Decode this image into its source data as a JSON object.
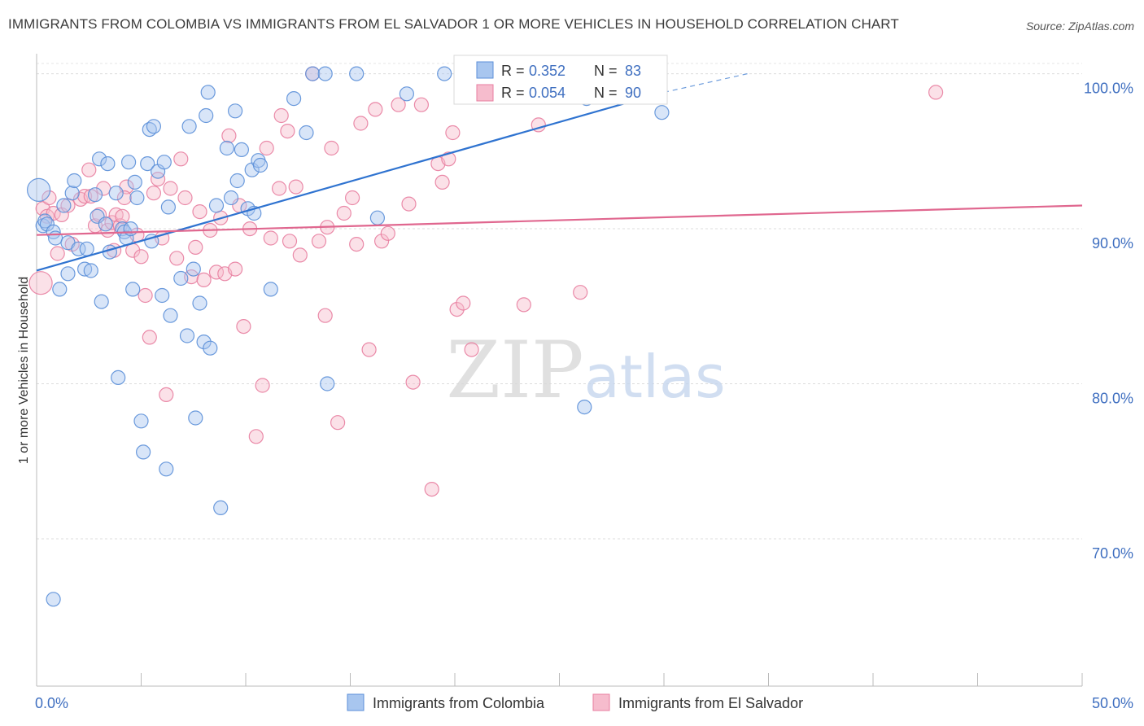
{
  "chart_data": {
    "type": "scatter",
    "title": "IMMIGRANTS FROM COLOMBIA VS IMMIGRANTS FROM EL SALVADOR 1 OR MORE VEHICLES IN HOUSEHOLD CORRELATION CHART",
    "source": "Source: ZipAtlas.com",
    "xlabel": "",
    "ylabel": "1 or more Vehicles in Household",
    "xlim": [
      0,
      50
    ],
    "ylim": [
      60.5,
      101.5
    ],
    "x_tick_labels": [
      "0.0%",
      "50.0%"
    ],
    "y_ticks": [
      70,
      80,
      90,
      100
    ],
    "y_tick_labels": [
      "70.0%",
      "80.0%",
      "90.0%",
      "100.0%"
    ],
    "grid": true,
    "legend_position": "bottom-center",
    "watermark": "ZIPatlas",
    "series": [
      {
        "name": "Immigrants from Colombia",
        "color": "#5b8fd8",
        "fill": "#a8c6ef",
        "R": "0.352",
        "N": "83",
        "trend": {
          "x0": 0,
          "y0": 87.3,
          "x1": 30,
          "y1": 98.8,
          "dash_to_x": 34,
          "dash_to_y": 100.0
        },
        "points": [
          [
            0.1,
            92.5
          ],
          [
            0.3,
            90.2
          ],
          [
            0.4,
            90.5
          ],
          [
            0.5,
            90.3
          ],
          [
            0.8,
            89.8
          ],
          [
            0.9,
            89.4
          ],
          [
            1.1,
            86.1
          ],
          [
            1.3,
            91.5
          ],
          [
            1.5,
            87.1
          ],
          [
            1.5,
            89.1
          ],
          [
            1.7,
            92.3
          ],
          [
            1.8,
            93.1
          ],
          [
            2.0,
            88.7
          ],
          [
            2.3,
            87.4
          ],
          [
            2.4,
            88.7
          ],
          [
            2.6,
            87.3
          ],
          [
            2.8,
            92.2
          ],
          [
            2.9,
            90.8
          ],
          [
            3.0,
            94.5
          ],
          [
            3.1,
            85.3
          ],
          [
            3.3,
            90.3
          ],
          [
            3.4,
            94.2
          ],
          [
            3.5,
            88.5
          ],
          [
            3.8,
            92.3
          ],
          [
            3.9,
            80.4
          ],
          [
            4.1,
            90.0
          ],
          [
            4.2,
            89.8
          ],
          [
            4.3,
            89.4
          ],
          [
            4.4,
            94.3
          ],
          [
            4.5,
            90.0
          ],
          [
            4.6,
            86.1
          ],
          [
            4.7,
            93.0
          ],
          [
            4.8,
            92.0
          ],
          [
            5.0,
            77.6
          ],
          [
            5.1,
            75.6
          ],
          [
            5.3,
            94.2
          ],
          [
            5.4,
            96.4
          ],
          [
            5.5,
            89.2
          ],
          [
            5.6,
            96.6
          ],
          [
            5.8,
            93.7
          ],
          [
            6.0,
            85.7
          ],
          [
            6.1,
            94.3
          ],
          [
            6.2,
            74.5
          ],
          [
            6.3,
            91.4
          ],
          [
            6.4,
            84.4
          ],
          [
            6.9,
            86.8
          ],
          [
            7.2,
            83.1
          ],
          [
            7.3,
            96.6
          ],
          [
            7.5,
            87.4
          ],
          [
            7.6,
            77.8
          ],
          [
            7.8,
            85.2
          ],
          [
            8.0,
            82.7
          ],
          [
            8.1,
            97.3
          ],
          [
            8.2,
            98.8
          ],
          [
            8.3,
            82.3
          ],
          [
            8.6,
            91.5
          ],
          [
            8.8,
            72.0
          ],
          [
            9.1,
            95.2
          ],
          [
            9.3,
            92.0
          ],
          [
            9.5,
            97.6
          ],
          [
            9.6,
            93.1
          ],
          [
            9.8,
            95.1
          ],
          [
            10.1,
            91.3
          ],
          [
            10.3,
            93.8
          ],
          [
            10.4,
            91.0
          ],
          [
            10.6,
            94.4
          ],
          [
            10.7,
            94.1
          ],
          [
            11.2,
            86.1
          ],
          [
            12.3,
            98.4
          ],
          [
            12.9,
            96.2
          ],
          [
            13.2,
            100.0
          ],
          [
            13.8,
            100.0
          ],
          [
            13.9,
            80.0
          ],
          [
            15.3,
            100.0
          ],
          [
            16.3,
            90.7
          ],
          [
            17.7,
            98.7
          ],
          [
            19.5,
            100.0
          ],
          [
            20.6,
            100.0
          ],
          [
            26.2,
            78.5
          ],
          [
            26.3,
            98.4
          ],
          [
            28.4,
            100.0
          ],
          [
            29.9,
            97.5
          ],
          [
            0.8,
            66.1
          ]
        ]
      },
      {
        "name": "Immigrants from El Salvador",
        "color": "#e87ea0",
        "fill": "#f6bccd",
        "R": "0.054",
        "N": "90",
        "trend": {
          "x0": 0,
          "y0": 89.6,
          "x1": 50,
          "y1": 91.5
        },
        "points": [
          [
            0.2,
            86.5
          ],
          [
            0.3,
            91.3
          ],
          [
            0.5,
            90.8
          ],
          [
            0.6,
            92.0
          ],
          [
            0.8,
            91.0
          ],
          [
            1.0,
            88.4
          ],
          [
            1.2,
            90.9
          ],
          [
            1.5,
            91.5
          ],
          [
            1.7,
            89.0
          ],
          [
            2.1,
            91.9
          ],
          [
            2.3,
            92.1
          ],
          [
            2.5,
            93.8
          ],
          [
            2.6,
            92.1
          ],
          [
            2.8,
            90.2
          ],
          [
            3.0,
            90.9
          ],
          [
            3.2,
            92.6
          ],
          [
            3.4,
            89.9
          ],
          [
            3.6,
            90.4
          ],
          [
            3.7,
            88.6
          ],
          [
            3.8,
            90.9
          ],
          [
            4.0,
            90.2
          ],
          [
            4.1,
            90.8
          ],
          [
            4.3,
            92.7
          ],
          [
            4.6,
            88.6
          ],
          [
            4.8,
            89.6
          ],
          [
            5.0,
            88.2
          ],
          [
            5.2,
            85.7
          ],
          [
            5.4,
            83.0
          ],
          [
            5.6,
            92.3
          ],
          [
            5.8,
            93.2
          ],
          [
            6.0,
            89.4
          ],
          [
            6.2,
            79.3
          ],
          [
            6.4,
            92.6
          ],
          [
            6.7,
            88.1
          ],
          [
            6.9,
            94.5
          ],
          [
            7.1,
            92.0
          ],
          [
            7.4,
            86.9
          ],
          [
            7.6,
            88.8
          ],
          [
            7.8,
            91.1
          ],
          [
            8.0,
            86.7
          ],
          [
            8.3,
            89.9
          ],
          [
            8.6,
            87.2
          ],
          [
            8.8,
            90.7
          ],
          [
            9.0,
            87.1
          ],
          [
            9.2,
            96.0
          ],
          [
            9.5,
            87.4
          ],
          [
            9.7,
            91.5
          ],
          [
            9.9,
            83.7
          ],
          [
            10.2,
            90.0
          ],
          [
            10.5,
            76.6
          ],
          [
            10.8,
            79.9
          ],
          [
            11.0,
            95.2
          ],
          [
            11.2,
            89.4
          ],
          [
            11.6,
            92.6
          ],
          [
            11.7,
            97.3
          ],
          [
            12.0,
            96.3
          ],
          [
            12.1,
            89.2
          ],
          [
            12.4,
            92.7
          ],
          [
            12.6,
            88.3
          ],
          [
            13.2,
            100.0
          ],
          [
            13.5,
            89.2
          ],
          [
            13.8,
            84.4
          ],
          [
            13.9,
            90.1
          ],
          [
            14.1,
            95.2
          ],
          [
            14.4,
            77.5
          ],
          [
            14.7,
            91.0
          ],
          [
            15.1,
            92.0
          ],
          [
            15.3,
            89.0
          ],
          [
            15.5,
            96.8
          ],
          [
            15.9,
            82.2
          ],
          [
            16.2,
            97.7
          ],
          [
            16.5,
            89.2
          ],
          [
            16.8,
            89.7
          ],
          [
            17.3,
            98.0
          ],
          [
            17.8,
            91.6
          ],
          [
            18.0,
            80.1
          ],
          [
            18.4,
            98.0
          ],
          [
            18.9,
            73.2
          ],
          [
            19.2,
            94.2
          ],
          [
            19.4,
            93.0
          ],
          [
            19.7,
            94.5
          ],
          [
            19.9,
            96.2
          ],
          [
            20.1,
            84.8
          ],
          [
            20.4,
            85.2
          ],
          [
            20.8,
            82.2
          ],
          [
            23.3,
            85.1
          ],
          [
            24.0,
            96.7
          ],
          [
            26.0,
            85.9
          ],
          [
            43.0,
            98.8
          ],
          [
            4.2,
            92.0
          ]
        ]
      }
    ]
  }
}
